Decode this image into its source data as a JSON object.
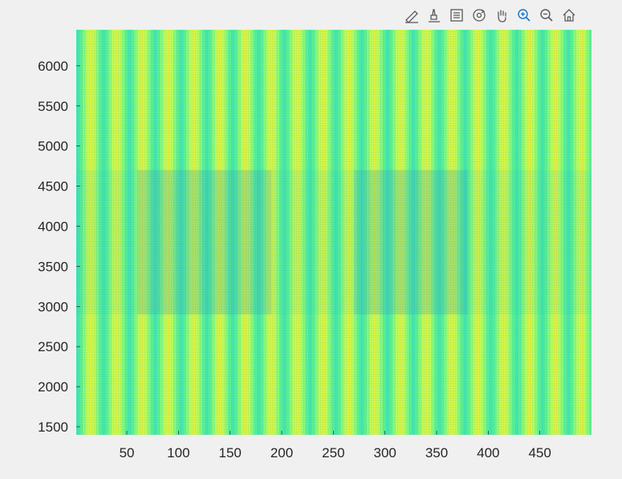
{
  "toolbar": {
    "items": [
      {
        "icon": "edit-datatip-icon"
      },
      {
        "icon": "brush-icon"
      },
      {
        "icon": "legend-icon"
      },
      {
        "icon": "rotate-3d-icon"
      },
      {
        "icon": "pan-hand-icon"
      },
      {
        "icon": "zoom-in-icon"
      },
      {
        "icon": "zoom-out-icon"
      },
      {
        "icon": "home-icon"
      }
    ],
    "icon_color": "#5a5a5a",
    "active_icon_color": "#1a73c9"
  },
  "chart_data": {
    "type": "heatmap",
    "title": "",
    "xlabel": "",
    "ylabel": "",
    "xlim": [
      1,
      500
    ],
    "ylim": [
      1400,
      6450
    ],
    "xticks": [
      50,
      100,
      150,
      200,
      250,
      300,
      350,
      400,
      450
    ],
    "yticks": [
      1500,
      2000,
      2500,
      3000,
      3500,
      4000,
      4500,
      5000,
      5500,
      6000
    ],
    "grid": false,
    "colormap": [
      "#3fe3b0",
      "#54ee96",
      "#8af77a",
      "#c4f952",
      "#e6f03a"
    ],
    "vertical_stripe_period": 25,
    "bands": [
      {
        "y": [
          1400,
          2900
        ],
        "pattern": "vertical stripes"
      },
      {
        "y": [
          2900,
          4700
        ],
        "pattern": "vertical stripes with darker modulation",
        "darker_x": [
          [
            60,
            190
          ],
          [
            270,
            380
          ]
        ]
      },
      {
        "y": [
          4700,
          6450
        ],
        "pattern": "vertical stripes"
      }
    ]
  }
}
